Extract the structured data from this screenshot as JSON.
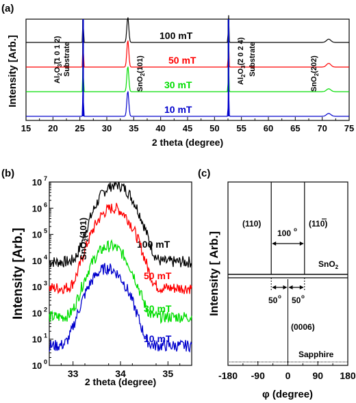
{
  "chart_data": [
    {
      "panel": "(a)",
      "type": "line",
      "xlabel": "2 theta (degree)",
      "ylabel": "Intensity [Arb.]",
      "xlim": [
        15,
        75
      ],
      "xticks": [
        "15",
        "20",
        "25",
        "30",
        "35",
        "40",
        "45",
        "50",
        "55",
        "60",
        "65",
        "70",
        "75"
      ],
      "grid": false,
      "series": [
        {
          "name": "100 mT",
          "color": "#000000",
          "peaks": [
            [
              25.6,
              1.0
            ],
            [
              33.9,
              0.85
            ],
            [
              52.6,
              1.0
            ],
            [
              71.2,
              0.08
            ]
          ]
        },
        {
          "name": "50 mT",
          "color": "#ff0000",
          "peaks": [
            [
              25.6,
              1.0
            ],
            [
              33.9,
              0.9
            ],
            [
              52.6,
              1.0
            ],
            [
              71.2,
              0.09
            ]
          ]
        },
        {
          "name": "30 mT",
          "color": "#00dd00",
          "peaks": [
            [
              25.6,
              1.0
            ],
            [
              33.9,
              0.85
            ],
            [
              52.6,
              1.0
            ],
            [
              71.2,
              0.07
            ]
          ]
        },
        {
          "name": "10 mT",
          "color": "#0000cc",
          "peaks": [
            [
              25.6,
              1.0
            ],
            [
              33.9,
              0.85
            ],
            [
              52.6,
              1.0
            ],
            [
              71.2,
              0.07
            ]
          ]
        }
      ],
      "annotations": [
        {
          "text": "Al2O3 (1 0 -1 2)",
          "x": 21.5,
          "kind": "formula_al1"
        },
        {
          "text": "Substrate",
          "x": 23.7
        },
        {
          "text": "SnO2 (101)",
          "x": 35.6,
          "kind": "formula_sn"
        },
        {
          "text": "Al2O3 (2 0 -2 4)",
          "x": 54.0,
          "kind": "formula_al2"
        },
        {
          "text": "Substrate",
          "x": 56.3
        },
        {
          "text": "SnO2 (202)",
          "x": 68.3,
          "kind": "formula_sn2"
        }
      ]
    },
    {
      "panel": "(b)",
      "type": "line",
      "xlabel": "2 theta (degree)",
      "ylabel": "Intensity [Arb.]",
      "yscale": "log",
      "xlim": [
        32.5,
        35.5
      ],
      "ylim": [
        1,
        10000000
      ],
      "xticks": [
        "33",
        "34",
        "35"
      ],
      "yticks": [
        "10^0",
        "10^1",
        "10^2",
        "10^3",
        "10^4",
        "10^5",
        "10^6",
        "10^7"
      ],
      "peak_label": "SnO2 (101)",
      "series": [
        {
          "name": "100 mT",
          "color": "#000000",
          "center": 33.9,
          "peak_log": 6.9,
          "base_log": 3.95
        },
        {
          "name": "50 mT",
          "color": "#ff0000",
          "center": 33.85,
          "peak_log": 6.0,
          "base_log": 2.95
        },
        {
          "name": "30 mT",
          "color": "#00dd00",
          "center": 33.78,
          "peak_log": 4.55,
          "base_log": 1.85
        },
        {
          "name": "10 mT",
          "color": "#0000cc",
          "center": 33.72,
          "peak_log": 3.7,
          "base_log": 0.75
        }
      ]
    },
    {
      "panel": "(c)",
      "type": "line",
      "xlabel": "φ (degree)",
      "ylabel": "Intensity  [ Arb.]",
      "xlim": [
        -180,
        180
      ],
      "xticks": [
        "-180",
        "-90",
        "0",
        "90",
        "180"
      ],
      "series": [
        {
          "name": "SnO2",
          "color": "#000000",
          "peaks": [
            -50,
            50
          ]
        },
        {
          "name": "Sapphire",
          "color": "#000000",
          "peaks": [
            0
          ]
        }
      ],
      "annotations": [
        "(110)",
        "(1-10)",
        "100°",
        "50°",
        "50°",
        "(0006)",
        "SnO2",
        "Sapphire"
      ]
    }
  ],
  "labels": {
    "a_panel": "(a)",
    "b_panel": "(b)",
    "c_panel": "(c)",
    "substrate": "Substrate",
    "sno2_101": "(101)",
    "sno2_202": "(202)",
    "al_102": "(1 0 1 2)",
    "al_204": "(2 0 2 4)",
    "c_110": "(110)",
    "c_1m10_a": "(1",
    "c_1m10_b": "1",
    "c_1m10_c": "0)",
    "c_100deg": "100",
    "c_50deg": "50",
    "c_deg": "o",
    "c_0006": "(0006)",
    "c_sno2": "SnO",
    "c_sub2": "2",
    "c_sapphire": "Sapphire",
    "b_sno2_101": "(101)"
  }
}
